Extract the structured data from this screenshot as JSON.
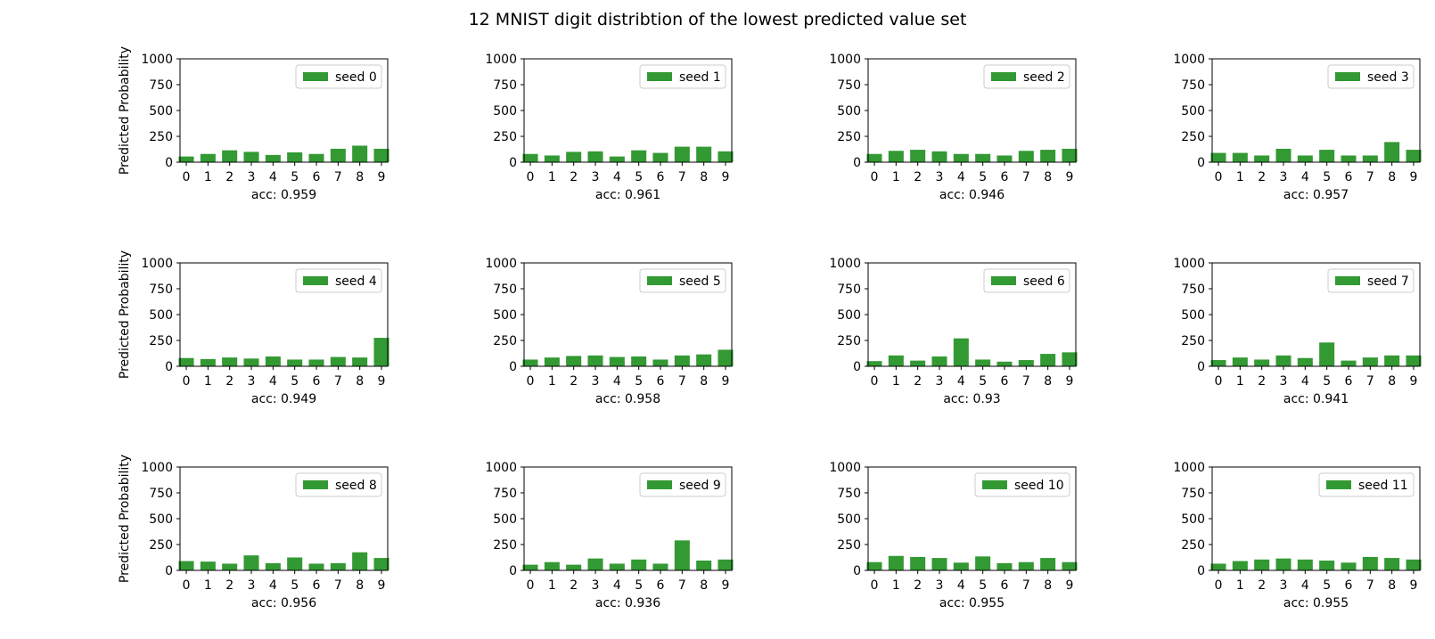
{
  "figure": {
    "title": "12 MNIST digit distribtion of the lowest predicted value set",
    "bar_color": "#339933"
  },
  "chart_data": [
    {
      "type": "bar",
      "categories": [
        "0",
        "1",
        "2",
        "3",
        "4",
        "5",
        "6",
        "7",
        "8",
        "9"
      ],
      "values": [
        55,
        80,
        115,
        100,
        70,
        95,
        80,
        130,
        160,
        130
      ],
      "legend": "seed 0",
      "xlabel": "acc: 0.959",
      "ylabel": "Predicted Probability",
      "ylim": [
        0,
        1000
      ],
      "yticks": [
        "0",
        "250",
        "500",
        "750",
        "1000"
      ]
    },
    {
      "type": "bar",
      "categories": [
        "0",
        "1",
        "2",
        "3",
        "4",
        "5",
        "6",
        "7",
        "8",
        "9"
      ],
      "values": [
        80,
        65,
        100,
        105,
        55,
        115,
        90,
        150,
        150,
        105
      ],
      "legend": "seed 1",
      "xlabel": "acc: 0.961",
      "ylabel": "",
      "ylim": [
        0,
        1000
      ],
      "yticks": [
        "0",
        "250",
        "500",
        "750",
        "1000"
      ]
    },
    {
      "type": "bar",
      "categories": [
        "0",
        "1",
        "2",
        "3",
        "4",
        "5",
        "6",
        "7",
        "8",
        "9"
      ],
      "values": [
        80,
        110,
        120,
        105,
        80,
        80,
        65,
        110,
        120,
        130
      ],
      "legend": "seed 2",
      "xlabel": "acc: 0.946",
      "ylabel": "",
      "ylim": [
        0,
        1000
      ],
      "yticks": [
        "0",
        "250",
        "500",
        "750",
        "1000"
      ]
    },
    {
      "type": "bar",
      "categories": [
        "0",
        "1",
        "2",
        "3",
        "4",
        "5",
        "6",
        "7",
        "8",
        "9"
      ],
      "values": [
        90,
        90,
        65,
        130,
        65,
        120,
        65,
        65,
        195,
        120
      ],
      "legend": "seed 3",
      "xlabel": "acc: 0.957",
      "ylabel": "",
      "ylim": [
        0,
        1000
      ],
      "yticks": [
        "0",
        "250",
        "500",
        "750",
        "1000"
      ]
    },
    {
      "type": "bar",
      "categories": [
        "0",
        "1",
        "2",
        "3",
        "4",
        "5",
        "6",
        "7",
        "8",
        "9"
      ],
      "values": [
        80,
        70,
        85,
        75,
        95,
        65,
        65,
        90,
        85,
        275
      ],
      "legend": "seed 4",
      "xlabel": "acc: 0.949",
      "ylabel": "Predicted Probability",
      "ylim": [
        0,
        1000
      ],
      "yticks": [
        "0",
        "250",
        "500",
        "750",
        "1000"
      ]
    },
    {
      "type": "bar",
      "categories": [
        "0",
        "1",
        "2",
        "3",
        "4",
        "5",
        "6",
        "7",
        "8",
        "9"
      ],
      "values": [
        65,
        85,
        100,
        105,
        90,
        95,
        65,
        105,
        115,
        160
      ],
      "legend": "seed 5",
      "xlabel": "acc: 0.958",
      "ylabel": "",
      "ylim": [
        0,
        1000
      ],
      "yticks": [
        "0",
        "250",
        "500",
        "750",
        "1000"
      ]
    },
    {
      "type": "bar",
      "categories": [
        "0",
        "1",
        "2",
        "3",
        "4",
        "5",
        "6",
        "7",
        "8",
        "9"
      ],
      "values": [
        50,
        105,
        55,
        95,
        270,
        65,
        45,
        60,
        120,
        135
      ],
      "legend": "seed 6",
      "xlabel": "acc: 0.93",
      "ylabel": "",
      "ylim": [
        0,
        1000
      ],
      "yticks": [
        "0",
        "250",
        "500",
        "750",
        "1000"
      ]
    },
    {
      "type": "bar",
      "categories": [
        "0",
        "1",
        "2",
        "3",
        "4",
        "5",
        "6",
        "7",
        "8",
        "9"
      ],
      "values": [
        60,
        85,
        65,
        105,
        80,
        230,
        55,
        85,
        105,
        105
      ],
      "legend": "seed 7",
      "xlabel": "acc: 0.941",
      "ylabel": "",
      "ylim": [
        0,
        1000
      ],
      "yticks": [
        "0",
        "250",
        "500",
        "750",
        "1000"
      ]
    },
    {
      "type": "bar",
      "categories": [
        "0",
        "1",
        "2",
        "3",
        "4",
        "5",
        "6",
        "7",
        "8",
        "9"
      ],
      "values": [
        90,
        85,
        65,
        145,
        70,
        125,
        65,
        70,
        175,
        120
      ],
      "legend": "seed 8",
      "xlabel": "acc: 0.956",
      "ylabel": "Predicted Probability",
      "ylim": [
        0,
        1000
      ],
      "yticks": [
        "0",
        "250",
        "500",
        "750",
        "1000"
      ]
    },
    {
      "type": "bar",
      "categories": [
        "0",
        "1",
        "2",
        "3",
        "4",
        "5",
        "6",
        "7",
        "8",
        "9"
      ],
      "values": [
        55,
        80,
        55,
        115,
        65,
        105,
        65,
        290,
        95,
        105
      ],
      "legend": "seed 9",
      "xlabel": "acc: 0.936",
      "ylabel": "",
      "ylim": [
        0,
        1000
      ],
      "yticks": [
        "0",
        "250",
        "500",
        "750",
        "1000"
      ]
    },
    {
      "type": "bar",
      "categories": [
        "0",
        "1",
        "2",
        "3",
        "4",
        "5",
        "6",
        "7",
        "8",
        "9"
      ],
      "values": [
        80,
        140,
        130,
        120,
        75,
        135,
        70,
        80,
        120,
        80
      ],
      "legend": "seed 10",
      "xlabel": "acc: 0.955",
      "ylabel": "",
      "ylim": [
        0,
        1000
      ],
      "yticks": [
        "0",
        "250",
        "500",
        "750",
        "1000"
      ]
    },
    {
      "type": "bar",
      "categories": [
        "0",
        "1",
        "2",
        "3",
        "4",
        "5",
        "6",
        "7",
        "8",
        "9"
      ],
      "values": [
        65,
        90,
        105,
        115,
        105,
        95,
        75,
        130,
        120,
        105
      ],
      "legend": "seed 11",
      "xlabel": "acc: 0.955",
      "ylabel": "",
      "ylim": [
        0,
        1000
      ],
      "yticks": [
        "0",
        "250",
        "500",
        "750",
        "1000"
      ]
    }
  ]
}
